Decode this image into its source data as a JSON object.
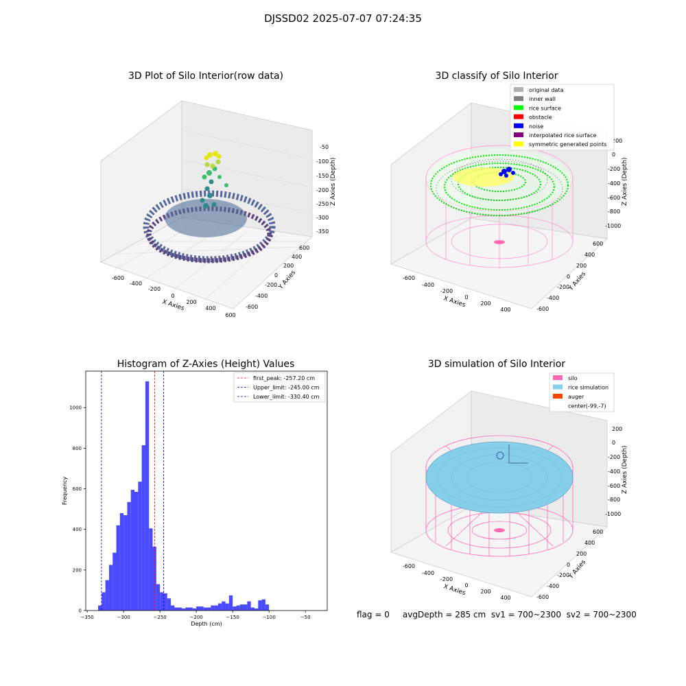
{
  "suptitle": "DJSSD02 2025-07-07 07:24:35",
  "panels": {
    "p1": {
      "title": "3D Plot of Silo Interior(row data)",
      "x_ticks": [
        "-600",
        "-400",
        "-200",
        "0",
        "200",
        "400",
        "600"
      ],
      "y_ticks": [
        "-600",
        "-400",
        "-200",
        "0",
        "200",
        "400",
        "600"
      ],
      "z_ticks": [
        "-50",
        "-100",
        "-150",
        "-200",
        "-250",
        "-300",
        "-350"
      ],
      "xlabel": "X Axies",
      "ylabel": "Y Axies",
      "zlabel": "Z Axies (Depth)"
    },
    "p2": {
      "title": "3D classify of Silo Interior",
      "x_ticks": [
        "-600",
        "-400",
        "-200",
        "0",
        "200",
        "400"
      ],
      "y_ticks": [
        "-600",
        "-400",
        "-200",
        "0",
        "200",
        "400",
        "600"
      ],
      "z_ticks": [
        "200",
        "0",
        "-200",
        "-400",
        "-600",
        "-800",
        "-1000"
      ],
      "xlabel": "X Axies",
      "ylabel": "Y Axies",
      "zlabel": "Z Axies (Depth)",
      "legend": [
        {
          "label": "original data",
          "color": "#b0b0b0"
        },
        {
          "label": "inner wall",
          "color": "#808080"
        },
        {
          "label": "rice surface",
          "color": "#00ff00"
        },
        {
          "label": "obstacle",
          "color": "#ff0000"
        },
        {
          "label": "noise",
          "color": "#0000ff"
        },
        {
          "label": "interpolated rice surface",
          "color": "#800080"
        },
        {
          "label": "symmetric generated points",
          "color": "#ffff00"
        }
      ]
    },
    "p4": {
      "title": "3D simulation of Silo Interior",
      "x_ticks": [
        "-600",
        "-400",
        "-200",
        "0",
        "200",
        "400"
      ],
      "y_ticks": [
        "-600",
        "-400",
        "-200",
        "0",
        "200",
        "400",
        "600"
      ],
      "z_ticks": [
        "200",
        "0",
        "-200",
        "-400",
        "-600",
        "-800",
        "-1000"
      ],
      "xlabel": "X Axies",
      "ylabel": "Y Axies",
      "zlabel": "Z Axies (Depth)",
      "legend": [
        {
          "label": "silo",
          "color": "#ff69b4"
        },
        {
          "label": "rice simulation",
          "color": "#87ceeb"
        },
        {
          "label": "auger",
          "color": "#ff4500"
        },
        {
          "label": "center(-99,-7)",
          "color": ""
        }
      ]
    }
  },
  "footer": "flag = 0     avgDepth = 285 cm  sv1 = 700~2300  sv2 = 700~2300",
  "colors": {
    "hist_bar": "#4a4aff",
    "peak_line": "#ff0000",
    "limit_line": "#0000cc"
  },
  "chart_data": {
    "type": "bar",
    "title": "Histogram of Z-Axies (Height) Values",
    "xlabel": "Depth (cm)",
    "ylabel": "Frequency",
    "xlim": [
      -352,
      -20
    ],
    "ylim": [
      0,
      1180
    ],
    "x_ticks": [
      -350,
      -300,
      -250,
      -200,
      -150,
      -100,
      -50
    ],
    "y_ticks": [
      0,
      200,
      400,
      600,
      800,
      1000
    ],
    "bin_start": -335,
    "bin_width": 5,
    "values": [
      25,
      90,
      150,
      225,
      285,
      420,
      480,
      470,
      535,
      595,
      585,
      635,
      815,
      1130,
      405,
      315,
      130,
      90,
      85,
      60,
      25,
      15,
      15,
      10,
      15,
      15,
      10,
      20,
      20,
      15,
      15,
      25,
      25,
      35,
      45,
      35,
      75,
      20,
      25,
      30,
      30,
      45,
      15,
      10,
      50,
      55,
      30
    ],
    "vlines": [
      {
        "label": "first_peak: -257.20 cm",
        "x": -257.2,
        "color": "#ff0000"
      },
      {
        "label": "Upper_limit: -245.00 cm",
        "x": -245.0,
        "color": "#0000cc"
      },
      {
        "label": "Lower_limit: -330.40 cm",
        "x": -330.4,
        "color": "#0000cc"
      }
    ],
    "legend_position": "upper right"
  }
}
